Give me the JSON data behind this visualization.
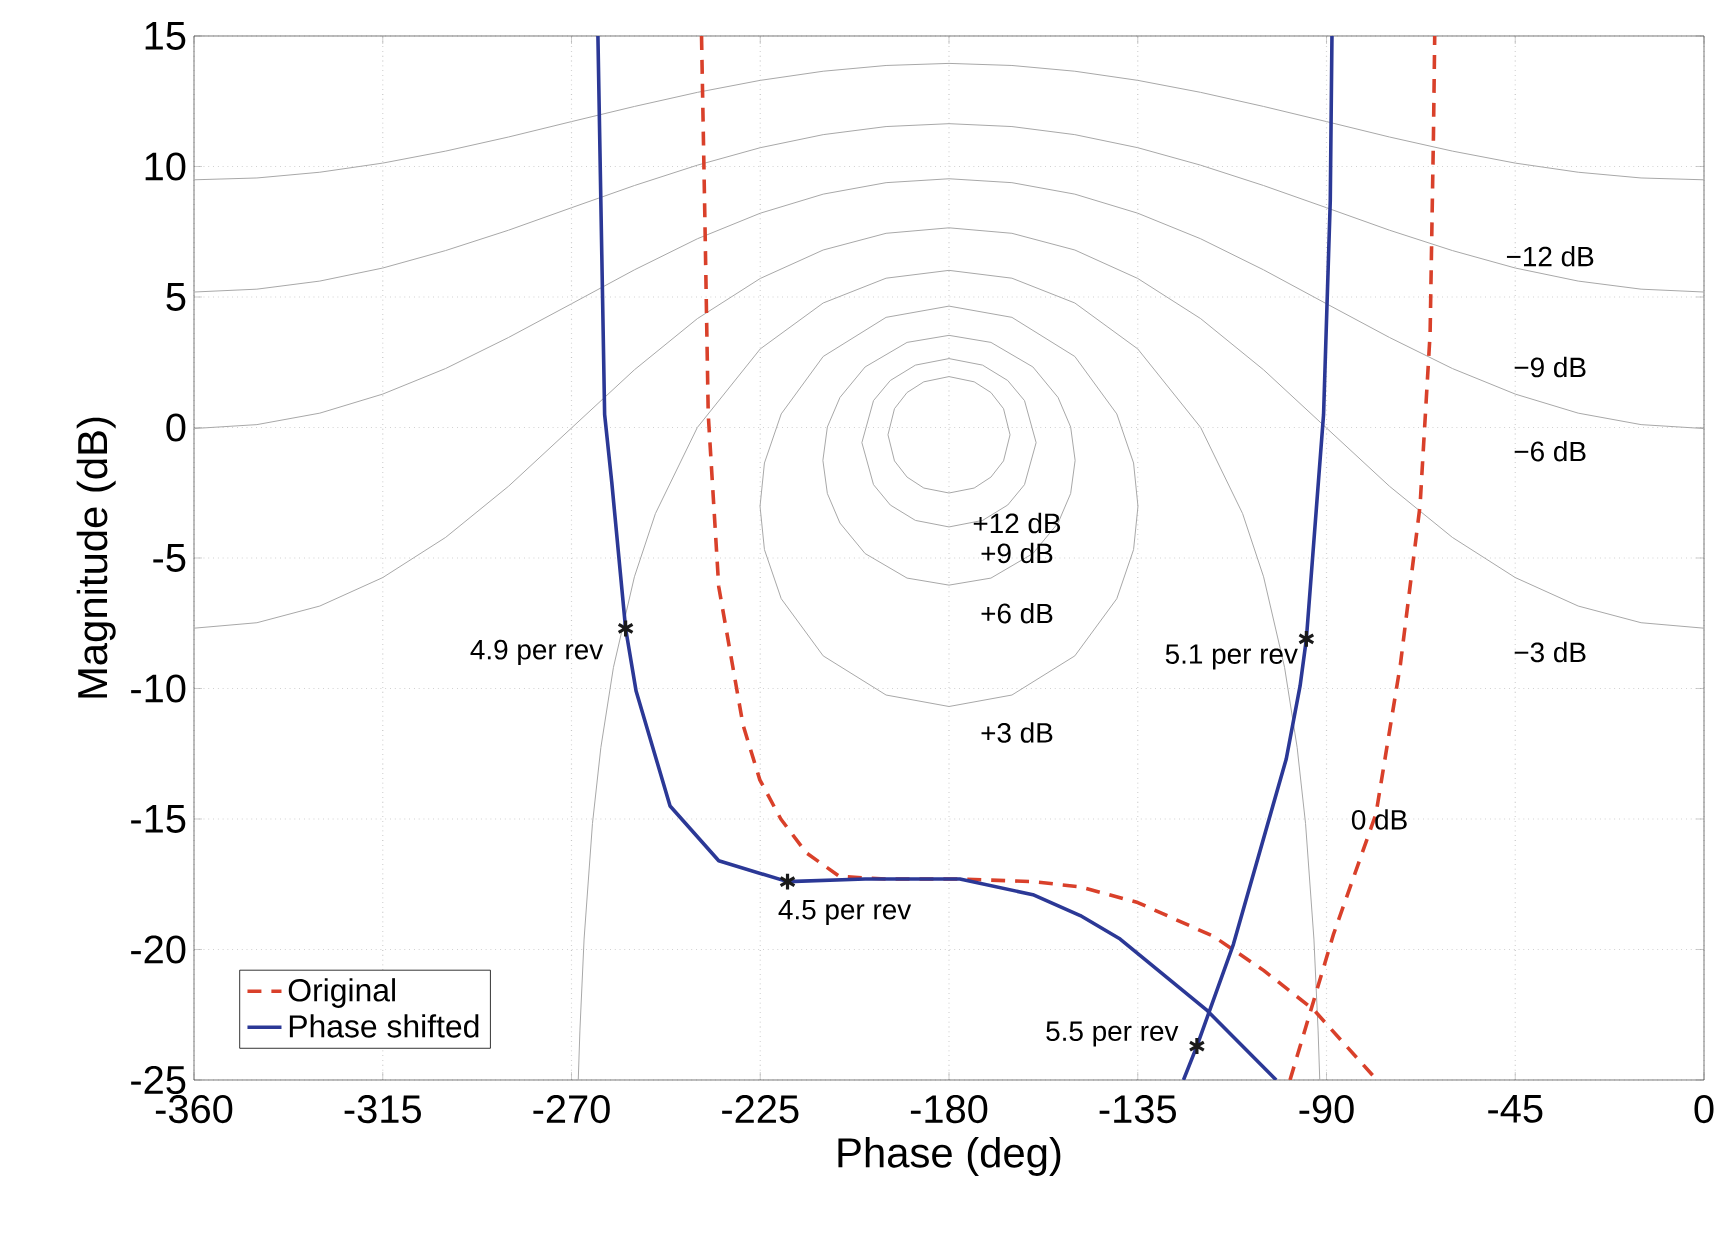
{
  "chart_data": {
    "type": "line",
    "xlabel": "Phase (deg)",
    "ylabel": "Magnitude (dB)",
    "xlim": [
      -360,
      0
    ],
    "ylim": [
      -25,
      15
    ],
    "xticks": [
      -360,
      -315,
      -270,
      -225,
      -180,
      -135,
      -90,
      -45,
      0
    ],
    "yticks": [
      -25,
      -20,
      -15,
      -10,
      -5,
      0,
      5,
      10,
      15
    ],
    "grid": true,
    "legend": "bottom left",
    "series": [
      {
        "type": "line",
        "color": "#a8a8a8",
        "x": [
          -360,
          -345,
          -330,
          -315,
          -300,
          -285,
          -270,
          -255,
          -240,
          -225,
          -210,
          -195,
          -180,
          -165,
          -150,
          -135,
          -120,
          -105,
          -90,
          -75,
          -60,
          -45,
          -30,
          -15,
          0
        ],
        "values": [
          9.49,
          9.56,
          9.78,
          10.13,
          10.59,
          11.13,
          11.72,
          12.3,
          12.84,
          13.3,
          13.65,
          13.87,
          13.95,
          13.87,
          13.65,
          13.3,
          12.84,
          12.3,
          11.72,
          11.13,
          10.59,
          10.13,
          9.78,
          9.56,
          9.49
        ]
      },
      {
        "type": "line",
        "color": "#a8a8a8",
        "x": [
          -360,
          -345,
          -330,
          -315,
          -300,
          -285,
          -270,
          -255,
          -240,
          -225,
          -210,
          -195,
          -180,
          -165,
          -150,
          -135,
          -120,
          -105,
          -90,
          -75,
          -60,
          -45,
          -30,
          -15,
          0
        ],
        "values": [
          5.19,
          5.3,
          5.61,
          6.11,
          6.78,
          7.56,
          8.42,
          9.27,
          10.05,
          10.72,
          11.22,
          11.53,
          11.64,
          11.53,
          11.22,
          10.72,
          10.05,
          9.27,
          8.42,
          7.56,
          6.78,
          6.11,
          5.61,
          5.3,
          5.19
        ]
      },
      {
        "type": "line",
        "color": "#a8a8a8",
        "x": [
          -360,
          -345,
          -330,
          -315,
          -300,
          -285,
          -270,
          -255,
          -240,
          -225,
          -210,
          -195,
          -180,
          -165,
          -150,
          -135,
          -120,
          -105,
          -90,
          -75,
          -60,
          -45,
          -30,
          -15,
          0
        ],
        "values": [
          -0.04,
          0.11,
          0.55,
          1.28,
          2.26,
          3.45,
          4.74,
          6.04,
          7.23,
          8.21,
          8.94,
          9.38,
          9.53,
          9.38,
          8.94,
          8.21,
          7.23,
          6.04,
          4.74,
          3.45,
          2.26,
          1.28,
          0.55,
          0.11,
          -0.04
        ]
      },
      {
        "type": "line",
        "color": "#a8a8a8",
        "x": [
          -360,
          -345,
          -330,
          -315,
          -300,
          -285,
          -270,
          -255,
          -240,
          -225,
          -210,
          -195,
          -180,
          -165,
          -150,
          -135,
          -120,
          -105,
          -90,
          -75,
          -60,
          -45,
          -30,
          -15,
          0
        ],
        "values": [
          -7.69,
          -7.48,
          -6.84,
          -5.75,
          -4.21,
          -2.25,
          -0.02,
          2.21,
          4.17,
          5.71,
          6.8,
          7.44,
          7.65,
          7.44,
          6.8,
          5.71,
          4.17,
          2.21,
          -0.02,
          -2.25,
          -4.21,
          -5.75,
          -6.84,
          -7.48,
          -7.69
        ]
      },
      {
        "type": "line",
        "color": "#a8a8a8",
        "x": [
          -268.39,
          -268,
          -267,
          -265,
          -263,
          -260,
          -255,
          -250,
          -240,
          -225,
          -210,
          -195,
          -180,
          -165,
          -150,
          -135,
          -120,
          -110,
          -105,
          -100,
          -97,
          -95,
          -93,
          -92,
          -91.61
        ],
        "values": [
          -25,
          -23.12,
          -19.6,
          -15.17,
          -12.26,
          -9.19,
          -5.72,
          -3.3,
          0,
          3.01,
          4.77,
          5.72,
          6.02,
          5.72,
          4.77,
          3.01,
          0,
          -3.3,
          -5.72,
          -9.19,
          -12.26,
          -15.17,
          -19.6,
          -23.12,
          -25
        ]
      },
      {
        "type": "line",
        "color": "#a8a8a8",
        "x": [
          -225.05,
          -224,
          -220,
          -210,
          -195,
          -180,
          -165,
          -150,
          -140,
          -136,
          -134.95,
          null,
          -225.05,
          -224,
          -220,
          -210,
          -195,
          -180,
          -165,
          -150,
          -140,
          -136,
          -134.95
        ],
        "values": [
          -3.02,
          -1.36,
          0.52,
          2.72,
          4.22,
          4.65,
          4.22,
          2.72,
          0.52,
          -1.36,
          -3.02,
          null,
          -3.02,
          -4.68,
          -6.56,
          -8.75,
          -10.25,
          -10.69,
          -10.25,
          -8.75,
          -6.56,
          -4.68,
          -3.02
        ]
      },
      {
        "type": "line",
        "color": "#a8a8a8",
        "x": [
          -210.07,
          -209,
          -206,
          -200,
          -190,
          -180,
          -170,
          -160,
          -154,
          -151,
          -149.93,
          null,
          -210.07,
          -209,
          -206,
          -200,
          -190,
          -180,
          -170,
          -160,
          -154,
          -151,
          -149.93
        ],
        "values": [
          -1.26,
          0.02,
          1.15,
          2.32,
          3.26,
          3.53,
          3.26,
          2.32,
          1.15,
          0.02,
          -1.26,
          null,
          -1.26,
          -2.53,
          -3.66,
          -4.83,
          -5.77,
          -6.04,
          -5.77,
          -4.83,
          -3.66,
          -2.53,
          -1.26
        ]
      },
      {
        "type": "line",
        "color": "#a8a8a8",
        "x": [
          -200.77,
          -198,
          -194,
          -188,
          -180,
          -172,
          -166,
          -162,
          -159.23,
          null,
          -200.77,
          -198,
          -194,
          -188,
          -180,
          -172,
          -166,
          -162,
          -159.23
        ],
        "values": [
          -0.58,
          1.03,
          1.8,
          2.39,
          2.64,
          2.39,
          1.8,
          1.03,
          -0.58,
          null,
          -0.58,
          -2.19,
          -2.97,
          -3.56,
          -3.81,
          -3.56,
          -2.97,
          -2.19,
          -0.58
        ]
      },
      {
        "type": "line",
        "color": "#a8a8a8",
        "x": [
          -194.55,
          -193,
          -190,
          -186,
          -180,
          -174,
          -170,
          -167,
          -165.45,
          null,
          -194.55,
          -193,
          -190,
          -186,
          -180,
          -174,
          -170,
          -167,
          -165.45
        ],
        "values": [
          -0.28,
          0.72,
          1.34,
          1.75,
          1.95,
          1.75,
          1.34,
          0.72,
          -0.28,
          null,
          -0.28,
          -1.28,
          -1.9,
          -2.32,
          -2.51,
          -2.32,
          -1.9,
          -1.28,
          -0.28
        ]
      },
      {
        "type": "line",
        "name": "Original",
        "color": "#d9402a",
        "line_style": "dashed",
        "x": [
          -239,
          -238.2,
          -237.4,
          -234.9,
          -229.1,
          -225.1,
          -220.1,
          -214,
          -206.1,
          -195,
          -177.4,
          -160,
          -148.7,
          -135,
          -116.9,
          -105,
          -93.1,
          -78,
          null,
          -98.7,
          -88.3,
          -78.2,
          -72.4,
          -67.7,
          -65.3,
          -64.5,
          -64.2
        ],
        "values": [
          15,
          8,
          0.5,
          -6.1,
          -11.4,
          -13.5,
          -15.0,
          -16.3,
          -17.2,
          -17.3,
          -17.3,
          -17.4,
          -17.6,
          -18.2,
          -19.5,
          -20.8,
          -22.3,
          -25,
          null,
          -25,
          -19.4,
          -14.8,
          -9.1,
          -3.0,
          3.6,
          11.2,
          15
        ]
      },
      {
        "type": "line",
        "name": "Phase shifted",
        "color": "#2b3896",
        "line_style": "solid",
        "x": [
          -263.7,
          -262.1,
          -260.4,
          -257.1,
          -254.6,
          -246.5,
          -234.9,
          -218.5,
          -200,
          -177.4,
          -160,
          -148.7,
          -139.2,
          -118.7,
          -102,
          null,
          -124.1,
          -120.9,
          -112.2,
          -99.6,
          -96.3,
          -94.8,
          -90.7,
          -89.1,
          -88.7
        ],
        "values": [
          15,
          0.5,
          -2.1,
          -7.7,
          -10.1,
          -14.5,
          -16.6,
          -17.4,
          -17.3,
          -17.3,
          -17.9,
          -18.7,
          -19.6,
          -22.3,
          -25,
          null,
          -25,
          -23.7,
          -19.8,
          -12.7,
          -9.9,
          -8.1,
          0.5,
          8.7,
          15
        ]
      },
      {
        "type": "scatter",
        "color": "#1a1a1a",
        "marker": "cross",
        "x": [
          -257.1,
          -218.5,
          -94.8,
          -120.9
        ],
        "values": [
          -7.7,
          -17.4,
          -8.1,
          -23.7
        ]
      }
    ],
    "annotations": [
      {
        "text": "−12 dB",
        "x": -30,
        "y": 9.78
      },
      {
        "text": "−9 dB",
        "x": -30,
        "y": 5.61
      },
      {
        "text": "−6 dB",
        "x": -30,
        "y": 0.55
      },
      {
        "text": "−3 dB",
        "x": -30,
        "y": -6.84
      },
      {
        "text": "0 dB",
        "x": -95,
        "y": -15.17
      },
      {
        "text": "+12 dB",
        "x": -180,
        "y": -2.51
      },
      {
        "text": "+9 dB",
        "x": -180,
        "y": -3.81
      },
      {
        "text": "+6 dB",
        "x": -180,
        "y": -6.04
      },
      {
        "text": "+3 dB",
        "x": -180,
        "y": -10.69
      },
      {
        "text": "4.9 per rev",
        "x": -257.1,
        "y": -7.7
      },
      {
        "text": "4.5 per rev",
        "x": -218.5,
        "y": -17.4
      },
      {
        "text": "5.1 per rev",
        "x": -94.8,
        "y": -8.1
      },
      {
        "text": "5.5 per rev",
        "x": -120.9,
        "y": -23.7
      }
    ]
  }
}
